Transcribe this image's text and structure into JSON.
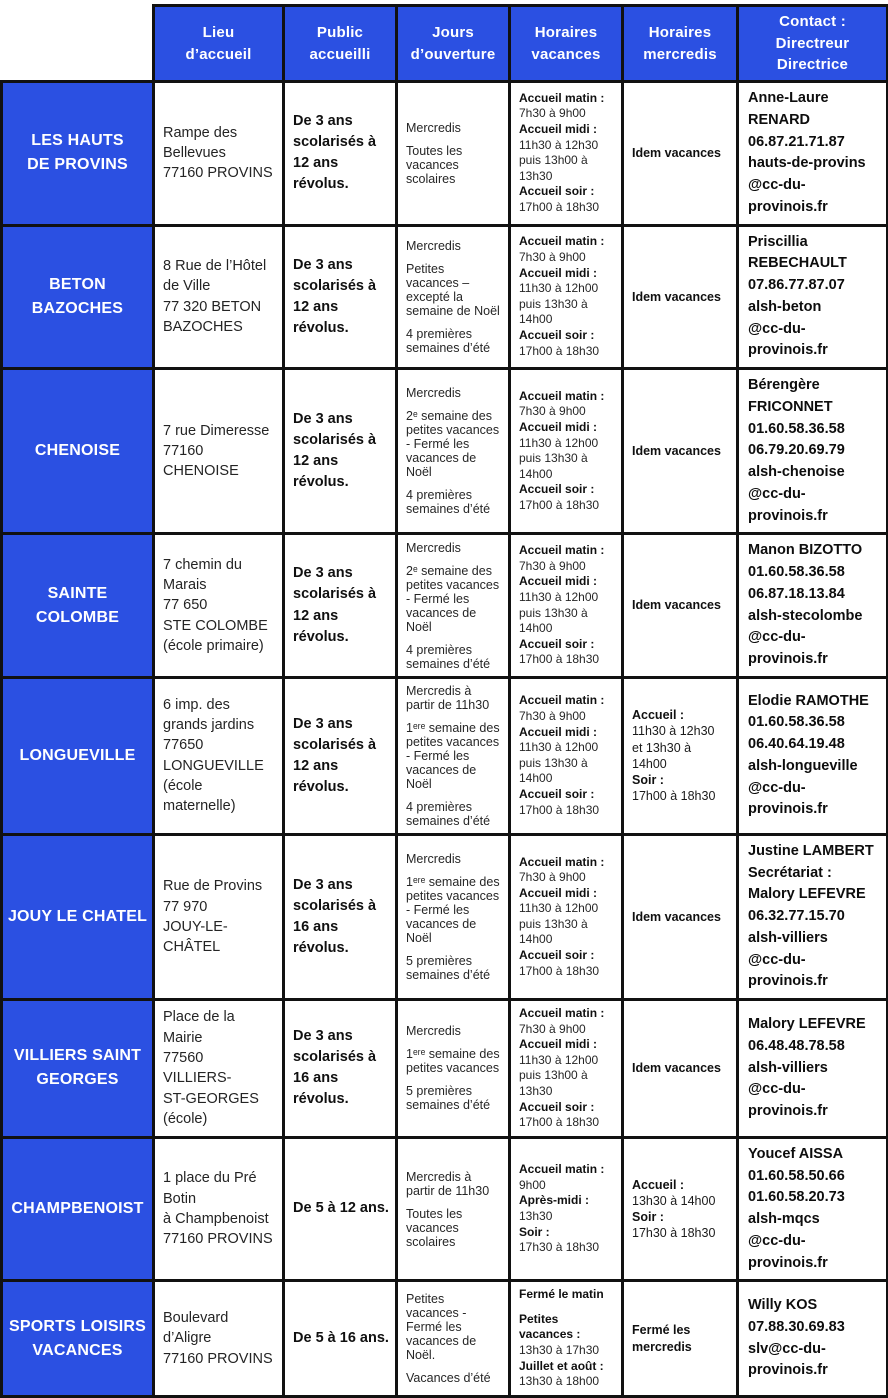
{
  "meta": {
    "accent_blue": "#2b50e2",
    "border_color": "#111111",
    "text_color": "#222222"
  },
  "header": {
    "columns": [
      {
        "lines": [
          "Lieu",
          "d’accueil"
        ]
      },
      {
        "lines": [
          "Public",
          "accueilli"
        ]
      },
      {
        "lines": [
          "Jours",
          "d’ouverture"
        ]
      },
      {
        "lines": [
          "Horaires",
          "vacances"
        ]
      },
      {
        "lines": [
          "Horaires",
          "mercredis"
        ]
      },
      {
        "lines": [
          "Contact :",
          "Directreur",
          "Directrice"
        ]
      }
    ]
  },
  "rows": [
    {
      "name": [
        "LES HAUTS",
        "DE PROVINS"
      ],
      "lieu": [
        "Rampe des",
        "Bellevues",
        "77160 PROVINS"
      ],
      "public": "De 3 ans scolarisés à 12 ans révolus.",
      "jours": [
        "Mercredis",
        "Toutes les vacances scolaires"
      ],
      "vacances": [
        {
          "t": "Accueil matin :",
          "b": true
        },
        {
          "t": "7h30 à 9h00"
        },
        {
          "t": "Accueil midi :",
          "b": true
        },
        {
          "t": "11h30 à 12h30"
        },
        {
          "t": "puis 13h00 à 13h30"
        },
        {
          "t": "Accueil soir :",
          "b": true
        },
        {
          "t": "17h00 à 18h30"
        }
      ],
      "mercredis": [
        {
          "t": "Idem vacances",
          "b": true
        }
      ],
      "contact": [
        "Anne-Laure RENARD",
        "06.87.21.71.87",
        "hauts-de-provins",
        "@cc-du-provinois.fr"
      ]
    },
    {
      "name": [
        "BETON",
        "BAZOCHES"
      ],
      "lieu": [
        "8 Rue de l’Hôtel",
        "de Ville",
        "77 320 BETON",
        "BAZOCHES"
      ],
      "public": "De 3 ans scolarisés à 12 ans révolus.",
      "jours": [
        "Mercredis",
        "Petites vacances – excepté la semaine de Noël",
        "4 premières semaines d’été"
      ],
      "vacances": [
        {
          "t": "Accueil matin :",
          "b": true
        },
        {
          "t": "7h30 à 9h00"
        },
        {
          "t": "Accueil midi :",
          "b": true
        },
        {
          "t": "11h30 à 12h00"
        },
        {
          "t": "puis 13h30 à 14h00"
        },
        {
          "t": "Accueil soir :",
          "b": true
        },
        {
          "t": "17h00 à 18h30"
        }
      ],
      "mercredis": [
        {
          "t": "Idem vacances",
          "b": true
        }
      ],
      "contact": [
        "Priscillia REBECHAULT",
        "07.86.77.87.07",
        "alsh-beton",
        "@cc-du-provinois.fr"
      ]
    },
    {
      "name": [
        "CHENOISE"
      ],
      "lieu": [
        "7 rue Dimeresse",
        "77160 CHENOISE"
      ],
      "public": "De 3 ans scolarisés à 12 ans révolus.",
      "jours": [
        "Mercredis",
        "2ᵉ semaine des petites vacances - Fermé les vacances de Noël",
        "4 premières semaines d’été"
      ],
      "vacances": [
        {
          "t": "Accueil matin :",
          "b": true
        },
        {
          "t": "7h30 à 9h00"
        },
        {
          "t": "Accueil midi :",
          "b": true
        },
        {
          "t": "11h30 à 12h00"
        },
        {
          "t": "puis 13h30 à 14h00"
        },
        {
          "t": "Accueil soir :",
          "b": true
        },
        {
          "t": "17h00 à 18h30"
        }
      ],
      "mercredis": [
        {
          "t": "Idem vacances",
          "b": true
        }
      ],
      "contact": [
        "Bérengère FRICONNET",
        "01.60.58.36.58",
        "06.79.20.69.79",
        "alsh-chenoise",
        "@cc-du-provinois.fr"
      ]
    },
    {
      "name": [
        "SAINTE",
        "COLOMBE"
      ],
      "lieu": [
        "7 chemin du",
        "Marais",
        "77 650",
        "STE COLOMBE",
        "(école primaire)"
      ],
      "public": "De 3 ans scolarisés à 12 ans révolus.",
      "jours": [
        "Mercredis",
        "2ᵉ semaine des petites vacances - Fermé les vacances de Noël",
        "4 premières semaines d’été"
      ],
      "vacances": [
        {
          "t": "Accueil matin :",
          "b": true
        },
        {
          "t": "7h30 à 9h00"
        },
        {
          "t": "Accueil midi :",
          "b": true
        },
        {
          "t": "11h30 à 12h00"
        },
        {
          "t": "puis 13h30 à 14h00"
        },
        {
          "t": "Accueil soir :",
          "b": true
        },
        {
          "t": "17h00 à 18h30"
        }
      ],
      "mercredis": [
        {
          "t": "Idem vacances",
          "b": true
        }
      ],
      "contact": [
        "Manon BIZOTTO",
        "01.60.58.36.58",
        "06.87.18.13.84",
        "alsh-stecolombe",
        "@cc-du-provinois.fr"
      ]
    },
    {
      "name": [
        "LONGUEVILLE"
      ],
      "lieu": [
        "6 imp. des",
        "grands jardins",
        "77650",
        "LONGUEVILLE",
        "(école maternelle)"
      ],
      "public": "De 3 ans scolarisés à 12 ans révolus.",
      "jours": [
        "Mercredis à partir de 11h30",
        "1ᵉʳᵉ semaine des petites vacances - Fermé les vacances de Noël",
        "4 premières semaines d’été"
      ],
      "vacances": [
        {
          "t": "Accueil matin :",
          "b": true
        },
        {
          "t": "7h30 à 9h00"
        },
        {
          "t": "Accueil midi :",
          "b": true
        },
        {
          "t": "11h30 à 12h00"
        },
        {
          "t": "puis 13h30 à 14h00"
        },
        {
          "t": "Accueil soir :",
          "b": true
        },
        {
          "t": "17h00 à 18h30"
        }
      ],
      "mercredis": [
        {
          "t": "Accueil :",
          "b": true
        },
        {
          "t": "11h30 à 12h30"
        },
        {
          "t": "et 13h30 à 14h00"
        },
        {
          "t": "Soir :",
          "b": true
        },
        {
          "t": "17h00 à 18h30"
        }
      ],
      "contact": [
        "Elodie RAMOTHE",
        "01.60.58.36.58",
        "06.40.64.19.48",
        "alsh-longueville",
        "@cc-du-provinois.fr"
      ]
    },
    {
      "name": [
        "JOUY LE CHATEL"
      ],
      "lieu": [
        "Rue de Provins",
        "77 970",
        "JOUY-LE-CHÂTEL"
      ],
      "public": "De 3 ans scolarisés à 16 ans révolus.",
      "jours": [
        "Mercredis",
        "1ᵉʳᵉ semaine des petites vacances - Fermé les vacances de Noël",
        "5 premières semaines d’été"
      ],
      "vacances": [
        {
          "t": "Accueil matin :",
          "b": true
        },
        {
          "t": "7h30 à 9h00"
        },
        {
          "t": "Accueil midi :",
          "b": true
        },
        {
          "t": "11h30 à 12h00"
        },
        {
          "t": "puis 13h30 à 14h00"
        },
        {
          "t": "Accueil soir :",
          "b": true
        },
        {
          "t": "17h00 à 18h30"
        }
      ],
      "mercredis": [
        {
          "t": "Idem vacances",
          "b": true
        }
      ],
      "contact": [
        "Justine LAMBERT",
        "Secrétariat :",
        "Malory LEFEVRE",
        "06.32.77.15.70",
        "alsh-villiers",
        "@cc-du-provinois.fr"
      ]
    },
    {
      "name": [
        "VILLIERS SAINT",
        "GEORGES"
      ],
      "lieu": [
        "Place de la Mairie",
        "77560 VILLIERS-",
        "ST-GEORGES",
        "(école)"
      ],
      "public": "De 3 ans scolarisés à 16 ans révolus.",
      "jours": [
        "Mercredis",
        "1ᵉʳᵉ semaine des petites vacances",
        "5 premières semaines d’été"
      ],
      "vacances": [
        {
          "t": "Accueil matin :",
          "b": true
        },
        {
          "t": "7h30 à 9h00"
        },
        {
          "t": "Accueil midi :",
          "b": true
        },
        {
          "t": "11h30 à 12h00"
        },
        {
          "t": "puis 13h00 à 13h30"
        },
        {
          "t": "Accueil soir :",
          "b": true
        },
        {
          "t": "17h00 à 18h30"
        }
      ],
      "mercredis": [
        {
          "t": "Idem vacances",
          "b": true
        }
      ],
      "contact": [
        "Malory LEFEVRE",
        "06.48.48.78.58",
        "alsh-villiers",
        "@cc-du-provinois.fr"
      ]
    },
    {
      "name": [
        "CHAMPBENOIST"
      ],
      "lieu": [
        "1 place du Pré Botin",
        "à Champbenoist",
        "77160 PROVINS"
      ],
      "public": "De 5 à 12 ans.",
      "jours": [
        "Mercredis à partir de 11h30",
        "Toutes les vacances scolaires"
      ],
      "vacances": [
        {
          "t": "Accueil matin :",
          "b": true
        },
        {
          "t": "9h00"
        },
        {
          "t": "Après-midi :",
          "b": true
        },
        {
          "t": "13h30"
        },
        {
          "t": "Soir :",
          "b": true
        },
        {
          "t": "17h30 à 18h30"
        }
      ],
      "mercredis": [
        {
          "t": "Accueil :",
          "b": true
        },
        {
          "t": "13h30 à 14h00"
        },
        {
          "t": "Soir :",
          "b": true
        },
        {
          "t": "17h30 à 18h30"
        }
      ],
      "contact": [
        "Youcef AISSA",
        "01.60.58.50.66",
        "01.60.58.20.73",
        "alsh-mqcs",
        "@cc-du-provinois.fr"
      ]
    },
    {
      "name": [
        "SPORTS LOISIRS",
        "VACANCES"
      ],
      "lieu": [
        "Boulevard",
        "d’Aligre",
        "77160 PROVINS"
      ],
      "public": "De 5 à 16 ans.",
      "jours": [
        "Petites vacances - Fermé les vacances de Noël.",
        "Vacances d’été"
      ],
      "vacances": [
        {
          "t": "Fermé le matin",
          "b": true
        },
        {
          "t": "Petites vacances :",
          "b": true,
          "gap": true
        },
        {
          "t": "13h30 à 17h30"
        },
        {
          "t": "Juillet et août :",
          "b": true
        },
        {
          "t": "13h30 à 18h00"
        }
      ],
      "mercredis": [
        {
          "t": "Fermé les",
          "b": true
        },
        {
          "t": "mercredis",
          "b": true
        }
      ],
      "contact": [
        "Willy KOS",
        "07.88.30.69.83",
        "slv@cc-du-provinois.fr"
      ]
    }
  ]
}
